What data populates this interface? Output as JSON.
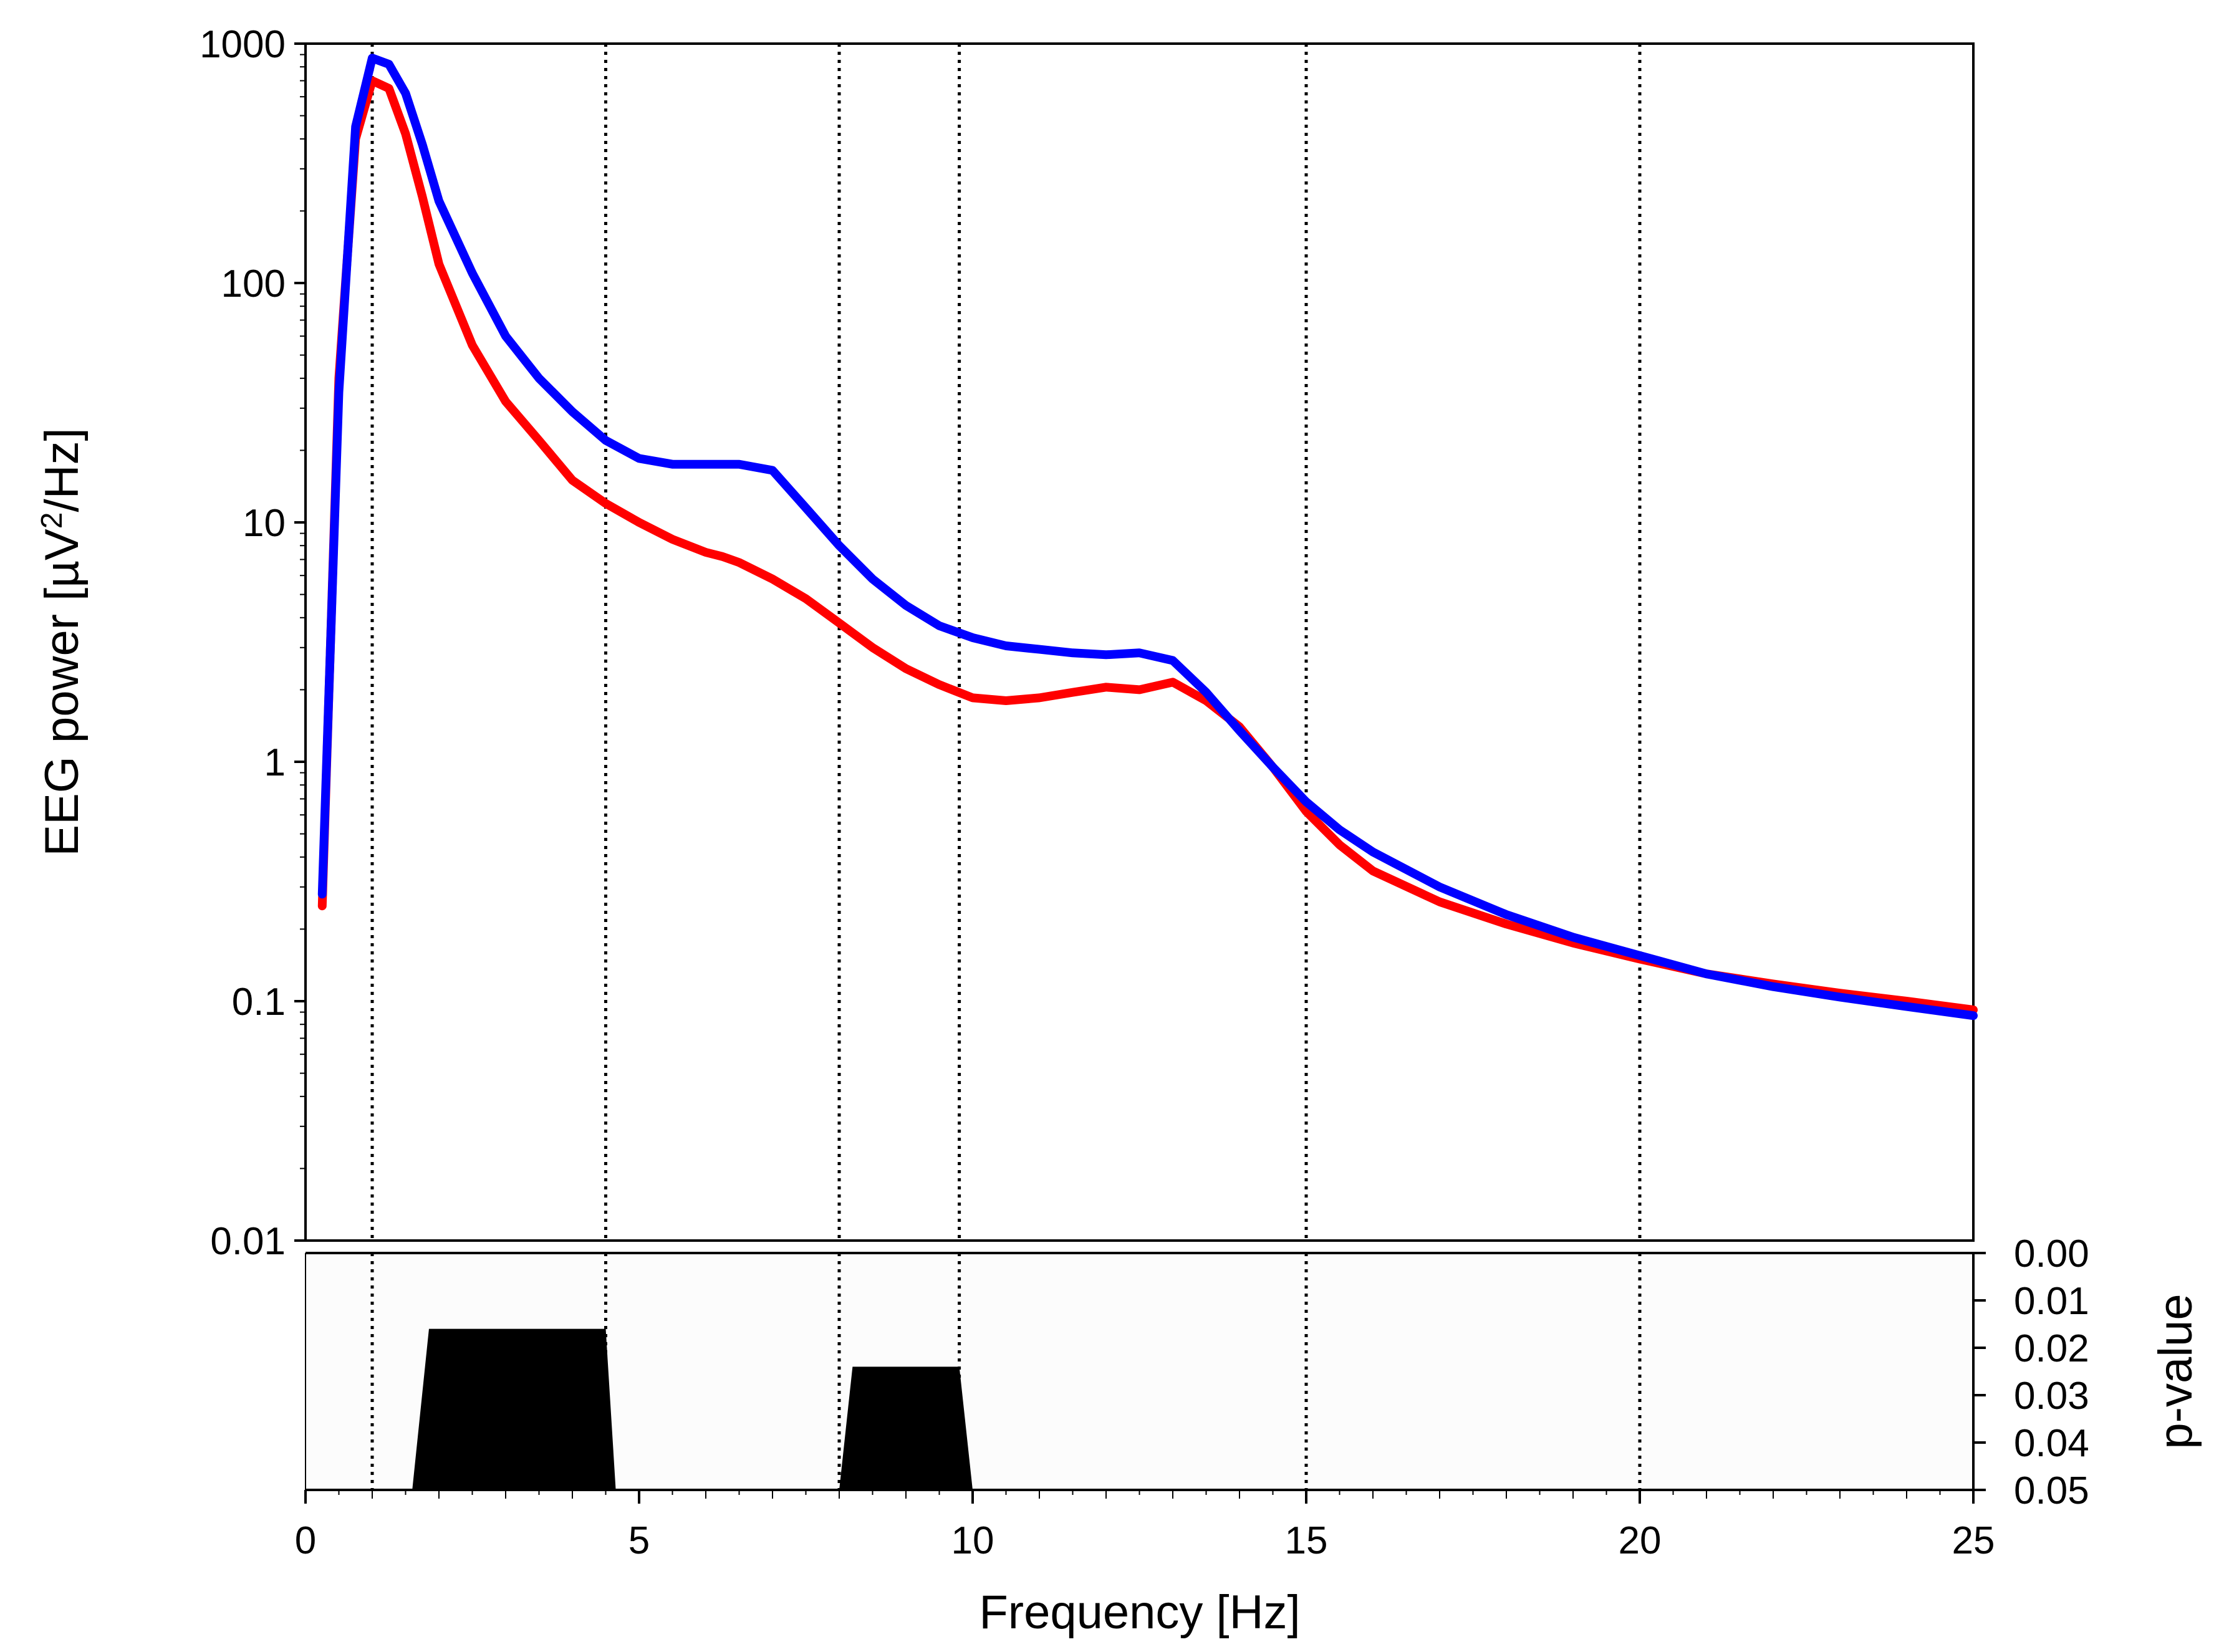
{
  "chart_data": [
    {
      "type": "line",
      "xlabel": "Frequency [Hz]",
      "ylabel_parts": [
        "EEG power [µV",
        "2",
        "/Hz]"
      ],
      "y_scale": "log",
      "xlim": [
        0,
        25
      ],
      "ylim": [
        0.01,
        1000
      ],
      "grid": "dotted vertical lines at 1, 4.5, 8, 9.8, 15, 20 Hz",
      "x_ticks": [
        0,
        5,
        10,
        15,
        20,
        25
      ],
      "x_tick_labels": [
        "0",
        "5",
        "10",
        "15",
        "20",
        "25"
      ],
      "y_ticks": [
        0.01,
        0.1,
        1,
        10,
        100,
        1000
      ],
      "y_tick_labels": [
        "0.01",
        "0.1",
        "1",
        "10",
        "100",
        "1000"
      ],
      "band_lines": [
        1,
        4.5,
        8,
        9.8,
        15,
        20
      ],
      "series": [
        {
          "color": "#ff0000",
          "x": [
            0.25,
            0.5,
            0.75,
            1.0,
            1.25,
            1.5,
            1.75,
            2.0,
            2.5,
            3.0,
            3.5,
            4.0,
            4.5,
            5.0,
            5.5,
            6.0,
            6.25,
            6.5,
            7.0,
            7.5,
            8.0,
            8.5,
            9.0,
            9.5,
            10.0,
            10.5,
            11.0,
            11.5,
            12.0,
            12.5,
            13.0,
            13.5,
            14.0,
            14.5,
            15.0,
            15.5,
            16.0,
            17.0,
            18.0,
            19.0,
            20.0,
            21.0,
            22.0,
            23.0,
            24.0,
            25.0
          ],
          "values": [
            0.25,
            40,
            400,
            700,
            650,
            420,
            230,
            120,
            55,
            32,
            22,
            15,
            12,
            10,
            8.5,
            7.5,
            7.2,
            6.8,
            5.8,
            4.8,
            3.8,
            3.0,
            2.45,
            2.1,
            1.85,
            1.8,
            1.85,
            1.95,
            2.05,
            2.0,
            2.15,
            1.8,
            1.4,
            0.95,
            0.62,
            0.45,
            0.35,
            0.26,
            0.21,
            0.175,
            0.15,
            0.13,
            0.118,
            0.108,
            0.1,
            0.092
          ]
        },
        {
          "color": "#0000ff",
          "x": [
            0.25,
            0.5,
            0.75,
            1.0,
            1.25,
            1.5,
            1.75,
            2.0,
            2.5,
            3.0,
            3.5,
            4.0,
            4.5,
            5.0,
            5.5,
            6.0,
            6.5,
            7.0,
            7.5,
            8.0,
            8.5,
            9.0,
            9.5,
            10.0,
            10.5,
            11.0,
            11.5,
            12.0,
            12.5,
            13.0,
            13.5,
            14.0,
            14.5,
            15.0,
            15.5,
            16.0,
            17.0,
            18.0,
            19.0,
            20.0,
            21.0,
            22.0,
            23.0,
            24.0,
            25.0
          ],
          "values": [
            0.28,
            35,
            450,
            870,
            820,
            620,
            380,
            220,
            110,
            60,
            40,
            29,
            22,
            18.5,
            17.5,
            17.5,
            17.5,
            16.5,
            11.5,
            8.0,
            5.8,
            4.5,
            3.7,
            3.3,
            3.05,
            2.95,
            2.85,
            2.8,
            2.85,
            2.65,
            1.95,
            1.35,
            0.95,
            0.68,
            0.52,
            0.42,
            0.3,
            0.23,
            0.185,
            0.155,
            0.13,
            0.115,
            0.104,
            0.095,
            0.087
          ]
        }
      ]
    },
    {
      "type": "area",
      "ylabel": "p-value",
      "xlim": [
        0,
        25
      ],
      "ylim": [
        0.05,
        0.0
      ],
      "y_axis_side": "right",
      "y_axis_inverted": true,
      "y_ticks": [
        0.0,
        0.01,
        0.02,
        0.03,
        0.04,
        0.05
      ],
      "y_tick_labels": [
        "0.00",
        "0.01",
        "0.02",
        "0.03",
        "0.04",
        "0.05"
      ],
      "significant_regions": [
        {
          "x_start": 1.6,
          "x_flat_start": 1.85,
          "x_flat_end": 4.5,
          "x_end": 4.65,
          "p": 0.016
        },
        {
          "x_start": 8.0,
          "x_flat_start": 8.2,
          "x_flat_end": 9.8,
          "x_end": 10.0,
          "p": 0.024
        }
      ]
    }
  ]
}
